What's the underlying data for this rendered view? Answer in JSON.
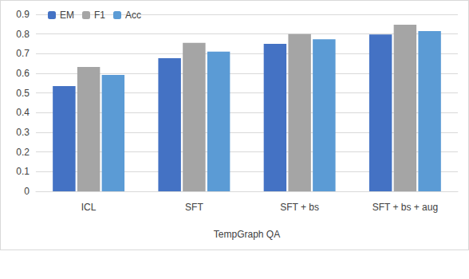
{
  "chart_data": {
    "type": "bar",
    "x_label": "TempGraph QA",
    "categories": [
      "ICL",
      "SFT",
      "SFT + bs",
      "SFT + bs + aug"
    ],
    "series": [
      {
        "name": "EM",
        "color": "#4472c4",
        "values": [
          0.535,
          0.677,
          0.75,
          0.798
        ]
      },
      {
        "name": "F1",
        "color": "#a5a5a5",
        "values": [
          0.632,
          0.755,
          0.8,
          0.847
        ]
      },
      {
        "name": "Acc",
        "color": "#5b9bd5",
        "values": [
          0.592,
          0.71,
          0.773,
          0.815
        ]
      }
    ],
    "ylim": [
      0,
      0.9
    ],
    "yticks": [
      0,
      0.1,
      0.2,
      0.3,
      0.4,
      0.5,
      0.6,
      0.7,
      0.8,
      0.9
    ],
    "grid": true,
    "legend": "top-left"
  }
}
